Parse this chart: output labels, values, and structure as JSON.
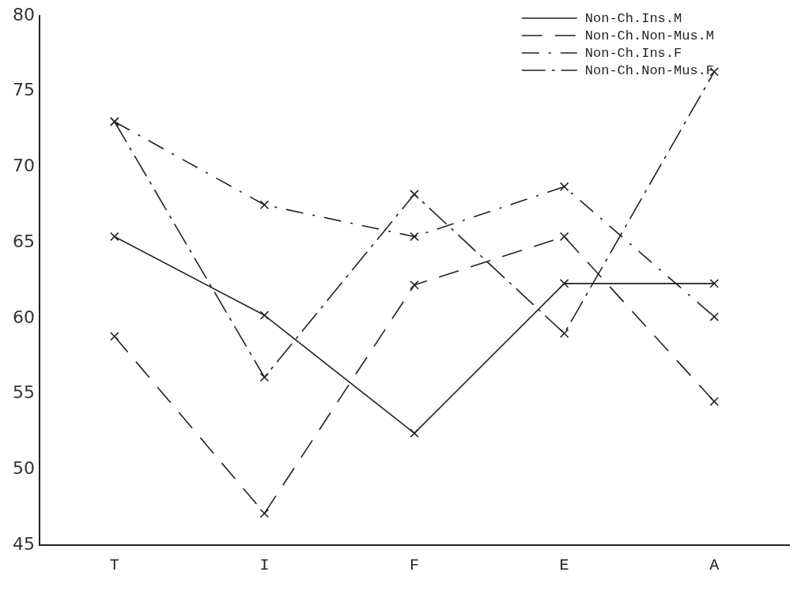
{
  "chart_data": {
    "type": "line",
    "categories": [
      "T",
      "I",
      "F",
      "E",
      "A"
    ],
    "series": [
      {
        "name": "Non-Ch.Ins.M",
        "color": "#222222",
        "line_style": "solid",
        "values": [
          65.4,
          60.2,
          52.4,
          62.3,
          62.3
        ]
      },
      {
        "name": "Non-Ch.Non-Mus.M",
        "color": "#222222",
        "line_style": "dashed",
        "values": [
          58.8,
          47.1,
          62.2,
          65.4,
          54.5
        ]
      },
      {
        "name": "Non-Ch.Ins.F",
        "color": "#222222",
        "line_style": "dashdot",
        "values": [
          73.0,
          67.5,
          65.4,
          68.7,
          60.1
        ]
      },
      {
        "name": "Non-Ch.Non-Mus.F",
        "color": "#222222",
        "line_style": "circles",
        "values": [
          73.0,
          56.1,
          68.2,
          59.0,
          76.3
        ]
      }
    ],
    "ylim": [
      45,
      80
    ],
    "yticks": [
      45,
      50,
      55,
      60,
      65,
      70,
      75,
      80
    ],
    "grid": false,
    "legend": "top right",
    "marker": "cross"
  }
}
